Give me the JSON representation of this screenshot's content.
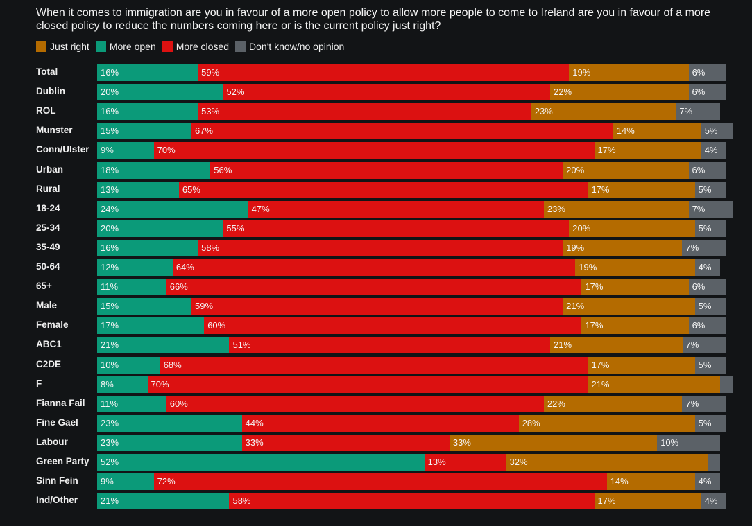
{
  "chart_data": {
    "type": "bar",
    "orientation": "horizontal",
    "stacked": true,
    "title": "When it comes to immigration are you in favour of a more open policy to allow more people to come to Ireland are you in favour of a more closed policy to reduce the numbers coming here or is the current policy just right?",
    "legend": {
      "placement": "top-left",
      "entries": [
        {
          "key": "just_right",
          "label": "Just right",
          "color": "#b46b00"
        },
        {
          "key": "more_open",
          "label": "More open",
          "color": "#0b9a79"
        },
        {
          "key": "more_closed",
          "label": "More closed",
          "color": "#dc1111"
        },
        {
          "key": "dont_know",
          "label": "Don't know/no opinion",
          "color": "#5b6167"
        }
      ]
    },
    "stack_order": [
      "more_open",
      "more_closed",
      "just_right",
      "dont_know"
    ],
    "value_suffix": "%",
    "categories": [
      "Total",
      "Dublin",
      "ROL",
      "Munster",
      "Conn/Ulster",
      "Urban",
      "Rural",
      "18-24",
      "25-34",
      "35-49",
      "50-64",
      "65+",
      "Male",
      "Female",
      "ABC1",
      "C2DE",
      "F",
      "Fianna Fail",
      "Fine Gael",
      "Labour",
      "Green Party",
      "Sinn Fein",
      "Ind/Other"
    ],
    "series": [
      {
        "name": "More open",
        "key": "more_open",
        "values": [
          16,
          20,
          16,
          15,
          9,
          18,
          13,
          24,
          20,
          16,
          12,
          11,
          15,
          17,
          21,
          10,
          8,
          11,
          23,
          23,
          52,
          9,
          21
        ]
      },
      {
        "name": "More closed",
        "key": "more_closed",
        "values": [
          59,
          52,
          53,
          67,
          70,
          56,
          65,
          47,
          55,
          58,
          64,
          66,
          59,
          60,
          51,
          68,
          70,
          60,
          44,
          33,
          13,
          72,
          58
        ]
      },
      {
        "name": "Just right",
        "key": "just_right",
        "values": [
          19,
          22,
          23,
          14,
          17,
          20,
          17,
          23,
          20,
          19,
          19,
          17,
          21,
          17,
          21,
          17,
          21,
          22,
          28,
          33,
          32,
          14,
          17
        ]
      },
      {
        "name": "Don't know/no opinion",
        "key": "dont_know",
        "values": [
          6,
          6,
          7,
          5,
          4,
          6,
          5,
          7,
          5,
          7,
          4,
          6,
          5,
          6,
          7,
          5,
          2,
          7,
          5,
          10,
          2,
          4,
          4
        ]
      }
    ],
    "hidden_labels": [
      {
        "category": "F",
        "series": "dont_know"
      },
      {
        "category": "Green Party",
        "series": "dont_know"
      }
    ],
    "xlim": [
      0,
      100
    ]
  }
}
